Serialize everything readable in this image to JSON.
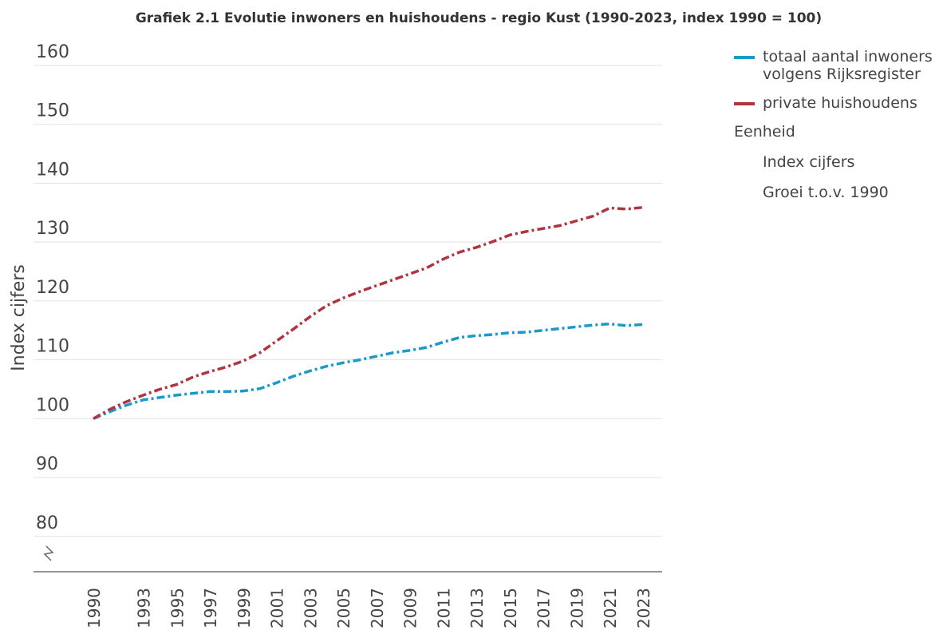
{
  "chart_data": {
    "type": "line",
    "title": "Grafiek 2.1 Evolutie inwoners en huishoudens - regio Kust (1990-2023, index 1990 = 100)",
    "y_label": "Index cijfers",
    "x": [
      1990,
      1991,
      1992,
      1993,
      1994,
      1995,
      1996,
      1997,
      1998,
      1999,
      2000,
      2001,
      2002,
      2003,
      2004,
      2005,
      2006,
      2007,
      2008,
      2009,
      2010,
      2011,
      2012,
      2013,
      2014,
      2015,
      2016,
      2017,
      2018,
      2019,
      2020,
      2021,
      2022,
      2023
    ],
    "series": [
      {
        "name": "totaal aantal inwoners volgens Rijksregister",
        "color": "#1a9ac9",
        "values": [
          100,
          101.2,
          102.3,
          103.2,
          103.6,
          104,
          104.3,
          104.6,
          104.6,
          104.7,
          105.1,
          106.1,
          107.2,
          108.1,
          108.9,
          109.5,
          110,
          110.6,
          111.2,
          111.6,
          112.1,
          113,
          113.8,
          114.1,
          114.3,
          114.6,
          114.7,
          115,
          115.3,
          115.6,
          115.9,
          116.1,
          115.8,
          116
        ]
      },
      {
        "name": "private huishoudens",
        "color": "#b0343f",
        "values": [
          100,
          101.6,
          102.9,
          104,
          105,
          105.8,
          107.1,
          108,
          108.8,
          109.8,
          111.2,
          113.2,
          115.2,
          117.3,
          119.2,
          120.5,
          121.6,
          122.6,
          123.6,
          124.6,
          125.6,
          127.1,
          128.3,
          129.1,
          130.1,
          131.2,
          131.8,
          132.3,
          132.8,
          133.6,
          134.4,
          135.8,
          135.6,
          135.9
        ]
      }
    ],
    "xlim": [
      1990,
      2023
    ],
    "xticks": [
      1990,
      1993,
      1995,
      1997,
      1999,
      2001,
      2003,
      2005,
      2007,
      2009,
      2011,
      2013,
      2015,
      2017,
      2019,
      2021,
      2023
    ],
    "ylim": [
      74,
      160
    ],
    "yticks": [
      80,
      90,
      100,
      110,
      120,
      130,
      140,
      150,
      160
    ],
    "grid": true,
    "legend_position": "right",
    "unit_selector": {
      "title": "Eenheid",
      "options": [
        "Index cijfers",
        "Groei t.o.v. 1990"
      ]
    }
  }
}
